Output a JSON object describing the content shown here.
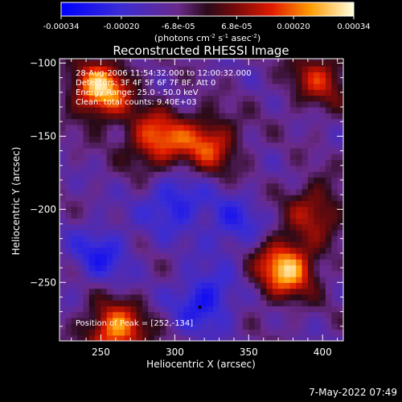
{
  "colorbar": {
    "ticks": [
      "-0.00034",
      "-0.00020",
      "-6.8e-05",
      "6.8e-05",
      "0.00020",
      "0.00034"
    ],
    "tick_values": [
      -0.00034,
      -0.0002,
      -6.8e-05,
      6.8e-05,
      0.0002,
      0.00034
    ],
    "range": [
      -0.00034,
      0.00034
    ],
    "units_html": "(photons cm<tspan baseline-shift='super' font-size='7'>-2</tspan> s<tspan baseline-shift='super' font-size='7'>-1</tspan> asec<tspan baseline-shift='super' font-size='7'>-2</tspan>)"
  },
  "chart_data": {
    "type": "heatmap",
    "title": "Reconstructed RHESSI Image",
    "xlabel": "Heliocentric X (arcsec)",
    "ylabel": "Heliocentric Y (arcsec)",
    "xlim": [
      222,
      414
    ],
    "ylim": [
      -290,
      -97
    ],
    "xticks": [
      250,
      300,
      350,
      400
    ],
    "yticks": [
      -100,
      -150,
      -200,
      -250
    ],
    "xtick_labels": [
      "250",
      "300",
      "350",
      "400"
    ],
    "ytick_labels": [
      "−100",
      "−150",
      "−200",
      "−250"
    ],
    "colormap": "blue-purple-red-yellow-white",
    "bright_sources": [
      {
        "x": 250,
        "y": -118,
        "v": 0.00034
      },
      {
        "x": 288,
        "y": -152,
        "v": 0.00026
      },
      {
        "x": 323,
        "y": -155,
        "v": 0.00022
      },
      {
        "x": 375,
        "y": -240,
        "v": 0.00034
      },
      {
        "x": 398,
        "y": -110,
        "v": 0.00018
      },
      {
        "x": 260,
        "y": -283,
        "v": 0.0003
      },
      {
        "x": 395,
        "y": -200,
        "v": 0.00016
      }
    ],
    "dark_regions": [
      {
        "x": 300,
        "y": -195,
        "v": -0.0002
      },
      {
        "x": 320,
        "y": -262,
        "v": -0.00022
      },
      {
        "x": 250,
        "y": -230,
        "v": -0.00018
      },
      {
        "x": 340,
        "y": -210,
        "v": -0.00016
      }
    ],
    "peak": {
      "x": 252,
      "y": -134
    }
  },
  "annotations": {
    "time": "28-Aug-2006 11:54:32.000 to 12:00:32.000",
    "detectors": "Detectors: 3F 4F 5F 6F 7F 8F, Att 0",
    "energy": "Energy Range: 25.0 - 50.0 keV",
    "counts": "Clean: total counts: 9.40E+03",
    "peak": "Position of Peak = [252,-134]"
  },
  "footer": {
    "date": "7-May-2022 07:49"
  }
}
